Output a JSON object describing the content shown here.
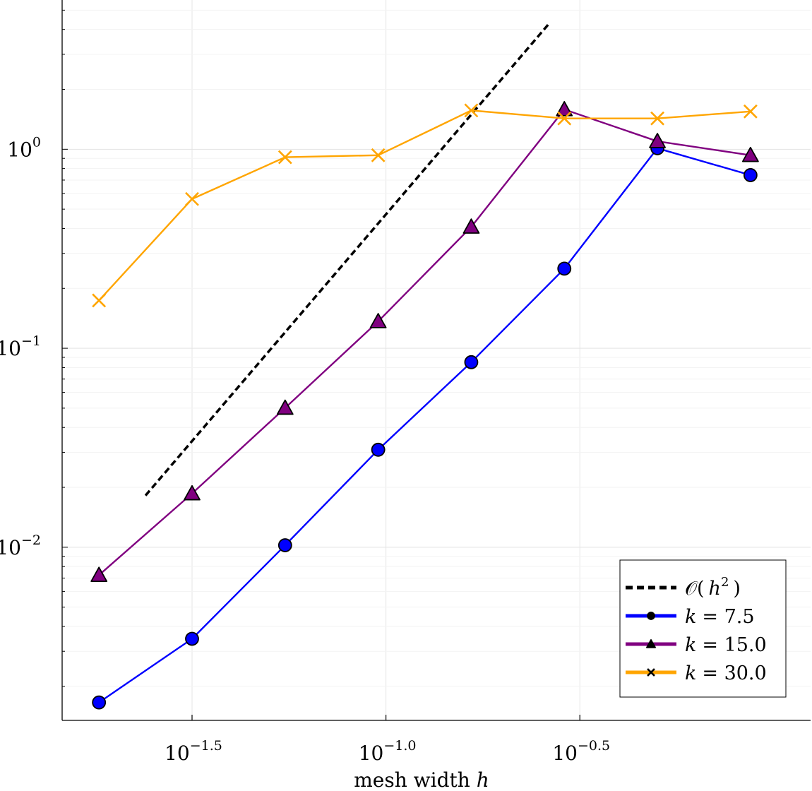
{
  "chart_data": {
    "type": "line",
    "title": "",
    "xlabel": "mesh width",
    "xlabel_var": "h",
    "ylabel": "",
    "xscale": "log10",
    "yscale": "log10",
    "xlim_log10": [
      -1.835,
      0.095
    ],
    "ylim_log10": [
      -2.87,
      0.75
    ],
    "grid": true,
    "legend_position": "bottom-right",
    "x_ticks": [
      {
        "base": "10",
        "exp": "−1.5",
        "log": -1.5
      },
      {
        "base": "10",
        "exp": "−1.0",
        "log": -1.0
      },
      {
        "base": "10",
        "exp": "−0.5",
        "log": -0.5
      }
    ],
    "y_ticks": [
      {
        "base": "10",
        "exp": "0",
        "log": 0
      },
      {
        "base": "10",
        "exp": "−1",
        "log": -1
      },
      {
        "base": "10",
        "exp": "−2",
        "log": -2
      }
    ],
    "x_log": [
      -1.74,
      -1.5,
      -1.26,
      -1.02,
      -0.78,
      -0.54,
      -0.3,
      -0.06
    ],
    "reference": {
      "name": "𝒪( h² )",
      "label_prefix": "𝒪(",
      "label_var": "h",
      "label_sup": "2",
      "label_suffix": ")",
      "x_log": [
        -1.62,
        -0.58
      ],
      "y_log": [
        -1.74,
        0.63
      ],
      "color": "#000000"
    },
    "series": [
      {
        "name": "k = 7.5",
        "label_var": "k",
        "label_value": "= 7.5",
        "marker": "circle",
        "color": "#0000ff",
        "y_log": [
          -2.78,
          -2.46,
          -1.99,
          -1.51,
          -1.07,
          -0.6,
          0.005,
          -0.13
        ]
      },
      {
        "name": "k = 15.0",
        "label_var": "k",
        "label_value": "= 15.0",
        "marker": "triangle",
        "color": "#800080",
        "y_log": [
          -2.14,
          -1.73,
          -1.3,
          -0.865,
          -0.39,
          0.2,
          0.04,
          -0.03
        ]
      },
      {
        "name": "k = 30.0",
        "label_var": "k",
        "label_value": "= 30.0",
        "marker": "x",
        "color": "#ffa500",
        "y_log": [
          -0.76,
          -0.25,
          -0.04,
          -0.03,
          0.195,
          0.155,
          0.155,
          0.19
        ]
      }
    ]
  }
}
